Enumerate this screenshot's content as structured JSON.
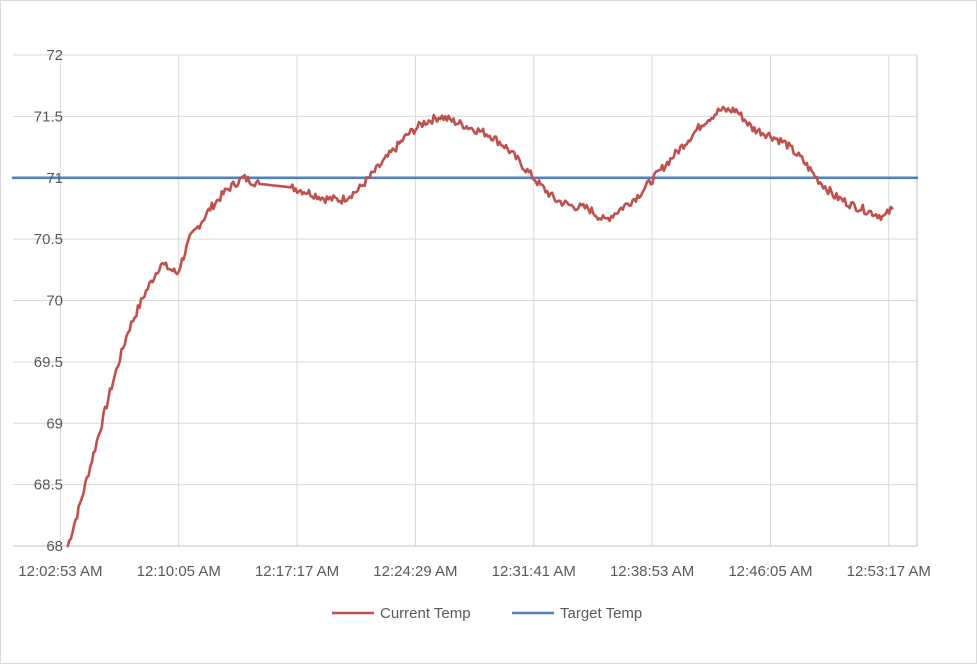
{
  "chart_data": {
    "type": "line",
    "title": "",
    "xlabel": "",
    "ylabel": "",
    "ylim": [
      68,
      72
    ],
    "y_ticks": [
      68,
      68.5,
      69,
      69.5,
      70,
      70.5,
      71,
      71.5,
      72
    ],
    "y_tick_labels": [
      "68",
      "68.5",
      "69",
      "69.5",
      "70",
      "70.5",
      "71",
      "71.5",
      "72"
    ],
    "x_range": [
      "12:00:00 AM",
      "12:55:00 AM"
    ],
    "x_tick_labels": [
      "12:02:53 AM",
      "12:10:05 AM",
      "12:17:17 AM",
      "12:24:29 AM",
      "12:31:41 AM",
      "12:38:53 AM",
      "12:46:05 AM",
      "12:53:17 AM"
    ],
    "grid": true,
    "legend": "bottom",
    "colors": {
      "current": "#c0504d",
      "target": "#4f81bd",
      "grid": "#d9d9d9",
      "axis": "#bfbfbf",
      "text": "#595959"
    },
    "series": [
      {
        "name": "Current Temp",
        "noisy": true,
        "x": [
          "12:03:20 AM",
          "12:04:00 AM",
          "12:05:00 AM",
          "12:06:00 AM",
          "12:07:00 AM",
          "12:08:00 AM",
          "12:09:00 AM",
          "12:10:00 AM",
          "12:10:45 AM",
          "12:11:15 AM",
          "12:12:00 AM",
          "12:13:00 AM",
          "12:14:00 AM",
          "12:15:00 AM",
          "12:17:00 AM",
          "12:18:00 AM",
          "12:19:00 AM",
          "12:20:00 AM",
          "12:21:00 AM",
          "12:22:00 AM",
          "12:23:00 AM",
          "12:24:00 AM",
          "12:25:00 AM",
          "12:26:00 AM",
          "12:27:00 AM",
          "12:28:00 AM",
          "12:29:00 AM",
          "12:30:00 AM",
          "12:31:00 AM",
          "12:32:00 AM",
          "12:33:00 AM",
          "12:34:00 AM",
          "12:35:00 AM",
          "12:36:00 AM",
          "12:37:00 AM",
          "12:38:00 AM",
          "12:39:00 AM",
          "12:40:00 AM",
          "12:41:00 AM",
          "12:42:00 AM",
          "12:43:00 AM",
          "12:44:00 AM",
          "12:45:00 AM",
          "12:46:00 AM",
          "12:47:00 AM",
          "12:48:00 AM",
          "12:49:00 AM",
          "12:50:00 AM",
          "12:51:00 AM",
          "12:52:00 AM",
          "12:53:00 AM",
          "12:53:30 AM"
        ],
        "values": [
          68.0,
          68.3,
          68.8,
          69.3,
          69.75,
          70.05,
          70.3,
          70.22,
          70.5,
          70.6,
          70.75,
          70.9,
          71.0,
          70.95,
          70.92,
          70.88,
          70.83,
          70.82,
          70.9,
          71.05,
          71.2,
          71.35,
          71.45,
          71.5,
          71.45,
          71.4,
          71.35,
          71.25,
          71.1,
          70.95,
          70.82,
          70.77,
          70.75,
          70.65,
          70.75,
          70.85,
          71.0,
          71.15,
          71.3,
          71.45,
          71.55,
          71.55,
          71.4,
          71.35,
          71.28,
          71.15,
          70.98,
          70.85,
          70.78,
          70.73,
          70.68,
          70.75
        ]
      },
      {
        "name": "Target Temp",
        "noisy": false,
        "x": [
          "12:00:00 AM",
          "12:55:00 AM"
        ],
        "values": [
          71,
          71
        ]
      }
    ]
  }
}
